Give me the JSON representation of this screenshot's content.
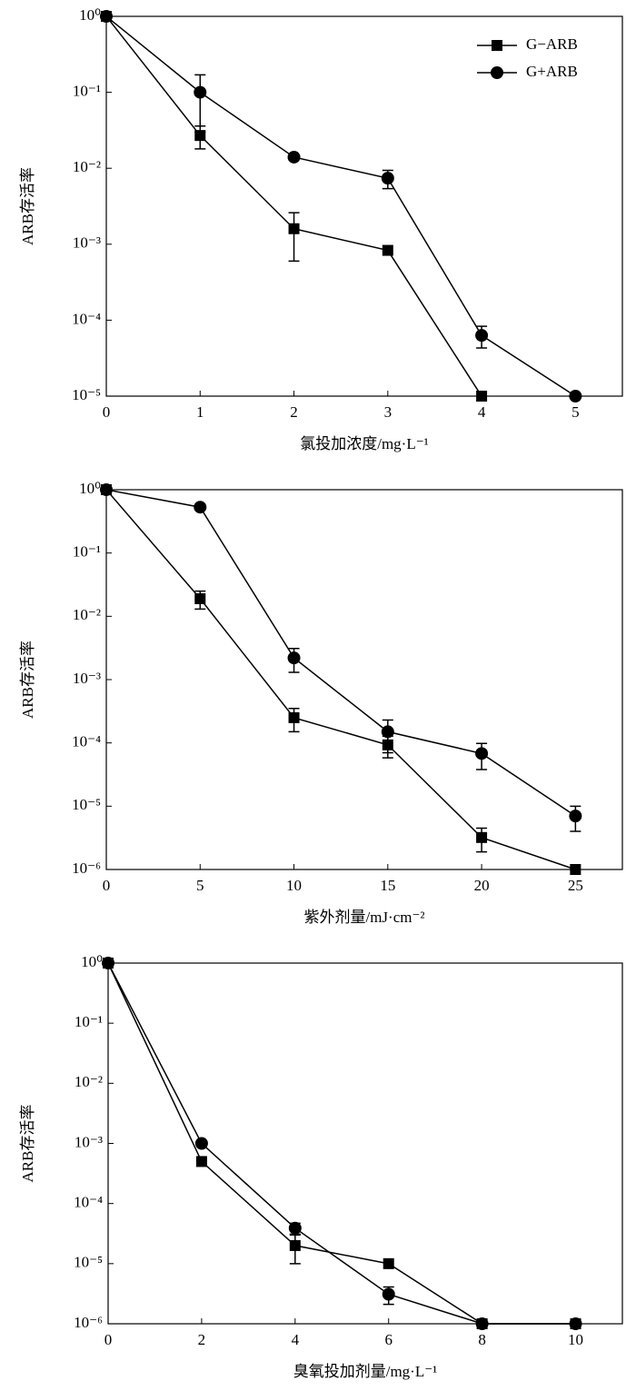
{
  "chart_data": [
    {
      "type": "line",
      "y_label": "ARB存活率",
      "x_label": "氯投加浓度/mg·L⁻¹",
      "log_y": true,
      "legend": "upper right",
      "x": [
        0,
        1,
        2,
        3,
        4,
        5
      ],
      "xlim": [
        0,
        5.5
      ],
      "xticks": [
        0,
        1,
        2,
        3,
        4,
        5
      ],
      "ylim": [
        1e-05,
        1
      ],
      "yticks": [
        {
          "value": 1,
          "label": "10⁰"
        },
        {
          "value": 0.1,
          "label": "10⁻¹"
        },
        {
          "value": 0.01,
          "label": "10⁻²"
        },
        {
          "value": 0.001,
          "label": "10⁻³"
        },
        {
          "value": 0.0001,
          "label": "10⁻⁴"
        },
        {
          "value": 1e-05,
          "label": "10⁻⁵"
        }
      ],
      "series": [
        {
          "name": "G−ARB",
          "marker": "square",
          "color": "#000000",
          "values": [
            1,
            0.027,
            0.0016,
            0.00083,
            1e-05,
            null
          ],
          "errors": [
            null,
            0.009,
            0.001,
            null,
            null,
            null
          ]
        },
        {
          "name": "G+ARB",
          "marker": "circle",
          "color": "#000000",
          "values": [
            1,
            0.1,
            0.014,
            0.0074,
            6.3e-05,
            1e-05
          ],
          "errors": [
            null,
            0.07,
            null,
            0.002,
            2e-05,
            null
          ]
        }
      ]
    },
    {
      "type": "line",
      "y_label": "ARB存活率",
      "x_label": "紫外剂量/mJ·cm⁻²",
      "log_y": true,
      "x": [
        0,
        5,
        10,
        15,
        20,
        25
      ],
      "xlim": [
        0,
        27.5
      ],
      "xticks": [
        0,
        5,
        10,
        15,
        20,
        25
      ],
      "ylim": [
        1e-06,
        1
      ],
      "yticks": [
        {
          "value": 1,
          "label": "10⁰"
        },
        {
          "value": 0.1,
          "label": "10⁻¹"
        },
        {
          "value": 0.01,
          "label": "10⁻²"
        },
        {
          "value": 0.001,
          "label": "10⁻³"
        },
        {
          "value": 0.0001,
          "label": "10⁻⁴"
        },
        {
          "value": 1e-05,
          "label": "10⁻⁵"
        },
        {
          "value": 1e-06,
          "label": "10⁻⁶"
        }
      ],
      "series": [
        {
          "marker": "square",
          "color": "#000000",
          "values": [
            1,
            0.019,
            0.00025,
            9.3e-05,
            3.2e-06,
            1e-06
          ],
          "errors": [
            null,
            0.006,
            0.0001,
            3.5e-05,
            1.3e-06,
            null
          ]
        },
        {
          "marker": "circle",
          "color": "#000000",
          "values": [
            1,
            0.53,
            0.0022,
            0.00015,
            6.8e-05,
            7e-06
          ],
          "errors": [
            null,
            null,
            0.0009,
            8e-05,
            3e-05,
            3e-06
          ]
        }
      ]
    },
    {
      "type": "line",
      "y_label": "ARB存活率",
      "x_label": "臭氧投加剂量/mg·L⁻¹",
      "log_y": true,
      "x": [
        0,
        2,
        4,
        6,
        8,
        10
      ],
      "xlim": [
        0,
        11
      ],
      "xticks": [
        0,
        2,
        4,
        6,
        8,
        10
      ],
      "ylim": [
        1e-06,
        1
      ],
      "yticks": [
        {
          "value": 1,
          "label": "10⁰"
        },
        {
          "value": 0.1,
          "label": "10⁻¹"
        },
        {
          "value": 0.01,
          "label": "10⁻²"
        },
        {
          "value": 0.001,
          "label": "10⁻³"
        },
        {
          "value": 0.0001,
          "label": "10⁻⁴"
        },
        {
          "value": 1e-05,
          "label": "10⁻⁵"
        },
        {
          "value": 1e-06,
          "label": "10⁻⁶"
        }
      ],
      "series": [
        {
          "marker": "square",
          "color": "#000000",
          "values": [
            1,
            0.0005,
            2e-05,
            1e-05,
            1e-06,
            1e-06
          ],
          "errors": [
            null,
            null,
            1e-05,
            null,
            null,
            null
          ]
        },
        {
          "marker": "circle",
          "color": "#000000",
          "values": [
            1,
            0.001,
            3.9e-05,
            3.1e-06,
            1e-06,
            1e-06
          ],
          "errors": [
            null,
            null,
            8e-06,
            1e-06,
            null,
            null
          ]
        }
      ]
    }
  ]
}
